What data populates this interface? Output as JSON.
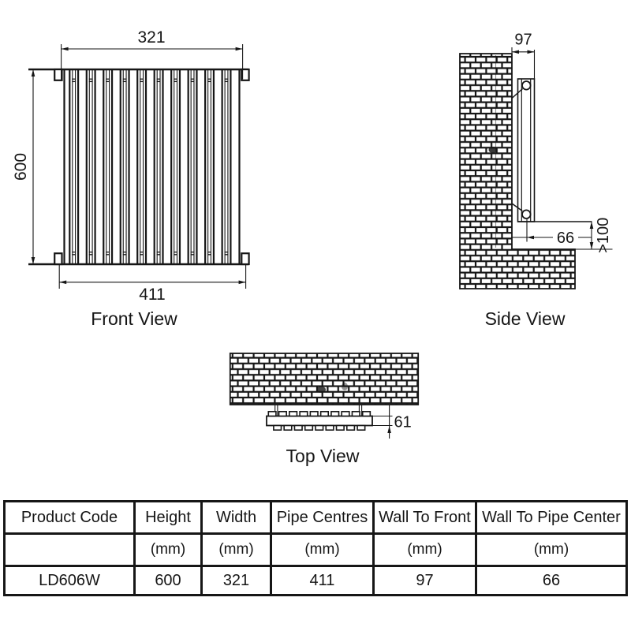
{
  "drawing": {
    "front_view": {
      "label": "Front View",
      "width_top": "321",
      "height": "600",
      "pipe_centres": "411"
    },
    "side_view": {
      "label": "Side View",
      "wall_to_front": "97",
      "wall_to_pipe_center": "66",
      "floor_clearance": ">100"
    },
    "top_view": {
      "label": "Top View",
      "depth": "61"
    }
  },
  "table": {
    "headers": [
      "Product Code",
      "Height",
      "Width",
      "Pipe Centres",
      "Wall To Front",
      "Wall To Pipe Center"
    ],
    "units": [
      "",
      "(mm)",
      "(mm)",
      "(mm)",
      "(mm)",
      "(mm)"
    ],
    "rows": [
      [
        "LD606W",
        "600",
        "321",
        "411",
        "97",
        "66"
      ]
    ]
  }
}
